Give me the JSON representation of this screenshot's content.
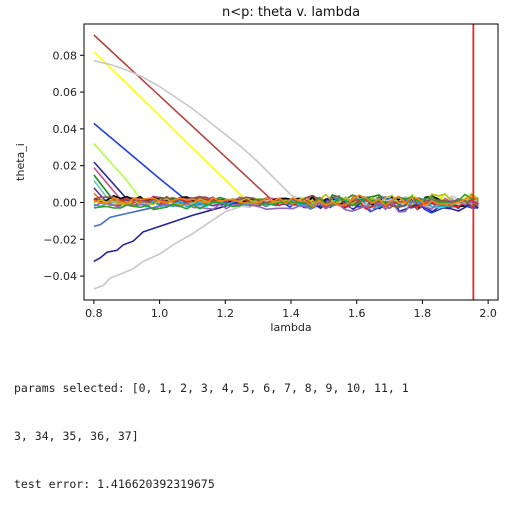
{
  "chart_data": {
    "type": "line",
    "title": "n<p: theta v. lambda",
    "xlabel": "lambda",
    "ylabel": "theta_i",
    "xlim": [
      0.77,
      2.03
    ],
    "ylim": [
      -0.053,
      0.097
    ],
    "xticks": [
      0.8,
      1.0,
      1.2,
      1.4,
      1.6,
      1.8,
      2.0
    ],
    "xtick_labels": [
      "0.8",
      "1.0",
      "1.2",
      "1.4",
      "1.6",
      "1.8",
      "2.0"
    ],
    "yticks": [
      0.08,
      0.06,
      0.04,
      0.02,
      0.0,
      -0.02,
      -0.04
    ],
    "ytick_labels": [
      "0.08",
      "0.06",
      "0.04",
      "0.02",
      "0.00",
      "−0.02",
      "−0.04"
    ],
    "grid": false,
    "legend": "none",
    "vline": {
      "x": 1.955,
      "color": "#e8282a"
    },
    "noise_x_start": 1.45,
    "noise_x_end": 1.97,
    "series": [
      {
        "color": "#b5443d",
        "points": [
          [
            0.8,
            0.091
          ],
          [
            1.35,
            0.0
          ],
          [
            1.97,
            -0.002
          ]
        ]
      },
      {
        "color": "#ffff00",
        "points": [
          [
            0.8,
            0.082
          ],
          [
            1.27,
            0.0
          ],
          [
            1.97,
            0.001
          ]
        ]
      },
      {
        "color": "#c8c8c8",
        "points": [
          [
            0.8,
            0.077
          ],
          [
            0.85,
            0.075
          ],
          [
            0.9,
            0.072
          ],
          [
            0.95,
            0.068
          ],
          [
            1.0,
            0.063
          ],
          [
            1.05,
            0.057
          ],
          [
            1.1,
            0.051
          ],
          [
            1.15,
            0.044
          ],
          [
            1.2,
            0.037
          ],
          [
            1.25,
            0.03
          ],
          [
            1.3,
            0.022
          ],
          [
            1.35,
            0.013
          ],
          [
            1.4,
            0.004
          ],
          [
            1.45,
            0.0
          ],
          [
            1.97,
            0.001
          ]
        ]
      },
      {
        "color": "#2040e0",
        "points": [
          [
            0.8,
            0.043
          ],
          [
            1.0,
            0.013
          ],
          [
            1.09,
            0.0
          ],
          [
            1.97,
            -0.003
          ]
        ]
      },
      {
        "color": "#b0ff40",
        "points": [
          [
            0.8,
            0.032
          ],
          [
            0.9,
            0.012
          ],
          [
            0.95,
            0.0
          ],
          [
            1.97,
            0.002
          ]
        ]
      },
      {
        "color": "#2a2a9c",
        "points": [
          [
            0.8,
            0.022
          ],
          [
            0.9,
            0.002
          ],
          [
            1.97,
            -0.001
          ]
        ]
      },
      {
        "color": "#c05090",
        "points": [
          [
            0.8,
            0.019
          ],
          [
            0.88,
            0.002
          ],
          [
            1.97,
            0.0
          ]
        ]
      },
      {
        "color": "#1a8a1a",
        "points": [
          [
            0.8,
            0.015
          ],
          [
            0.86,
            0.001
          ],
          [
            1.97,
            0.001
          ]
        ]
      },
      {
        "color": "#66c8c0",
        "points": [
          [
            0.8,
            0.012
          ],
          [
            0.85,
            0.0
          ],
          [
            1.97,
            0.0
          ]
        ]
      },
      {
        "color": "#7030a0",
        "points": [
          [
            0.8,
            0.008
          ],
          [
            0.84,
            0.0
          ],
          [
            1.97,
            -0.001
          ]
        ]
      },
      {
        "color": "#e07820",
        "points": [
          [
            0.8,
            0.005
          ],
          [
            0.83,
            0.0
          ],
          [
            1.97,
            0.001
          ]
        ]
      },
      {
        "color": "#000000",
        "points": [
          [
            0.8,
            0.002
          ],
          [
            1.97,
            0.0
          ]
        ]
      },
      {
        "color": "#4472c4",
        "points": [
          [
            0.8,
            -0.013
          ],
          [
            0.82,
            -0.012
          ],
          [
            0.85,
            -0.008
          ],
          [
            0.9,
            -0.006
          ],
          [
            0.95,
            -0.004
          ],
          [
            1.0,
            -0.002
          ],
          [
            1.05,
            0.0
          ],
          [
            1.97,
            -0.001
          ]
        ]
      },
      {
        "color": "#24249a",
        "points": [
          [
            0.8,
            -0.032
          ],
          [
            0.82,
            -0.03
          ],
          [
            0.84,
            -0.027
          ],
          [
            0.87,
            -0.026
          ],
          [
            0.89,
            -0.023
          ],
          [
            0.92,
            -0.021
          ],
          [
            0.95,
            -0.016
          ],
          [
            1.0,
            -0.013
          ],
          [
            1.1,
            -0.007
          ],
          [
            1.2,
            -0.002
          ],
          [
            1.25,
            0.0
          ],
          [
            1.97,
            -0.003
          ]
        ]
      },
      {
        "color": "#c8c8c8",
        "points": [
          [
            0.8,
            -0.047
          ],
          [
            0.83,
            -0.045
          ],
          [
            0.85,
            -0.041
          ],
          [
            0.88,
            -0.039
          ],
          [
            0.92,
            -0.036
          ],
          [
            0.95,
            -0.032
          ],
          [
            1.0,
            -0.028
          ],
          [
            1.05,
            -0.022
          ],
          [
            1.1,
            -0.017
          ],
          [
            1.15,
            -0.011
          ],
          [
            1.2,
            -0.005
          ],
          [
            1.25,
            -0.002
          ],
          [
            1.3,
            0.0
          ],
          [
            1.97,
            0.0
          ]
        ]
      },
      {
        "color": "#d62728",
        "points": [
          [
            0.8,
            0.001
          ],
          [
            1.97,
            -0.001
          ]
        ]
      },
      {
        "color": "#17becf",
        "points": [
          [
            0.8,
            -0.001
          ],
          [
            1.97,
            0.001
          ]
        ]
      },
      {
        "color": "#bcbd22",
        "points": [
          [
            0.8,
            0.0
          ],
          [
            1.97,
            0.002
          ]
        ]
      },
      {
        "color": "#9467bd",
        "points": [
          [
            0.8,
            -0.002
          ],
          [
            1.97,
            -0.002
          ]
        ]
      },
      {
        "color": "#8c564b",
        "points": [
          [
            0.8,
            0.002
          ],
          [
            1.97,
            0.0
          ]
        ]
      },
      {
        "color": "#2ca02c",
        "points": [
          [
            0.8,
            -0.003
          ],
          [
            1.97,
            0.002
          ]
        ]
      },
      {
        "color": "#ff7f0e",
        "points": [
          [
            0.8,
            0.001
          ],
          [
            1.97,
            0.001
          ]
        ]
      }
    ]
  },
  "output": {
    "params_line": "params selected: [0, 1, 2, 3, 4, 5, 6, 7, 8, 9, 10, 11, 1",
    "params_line_2": "3, 34, 35, 36, 37]",
    "test_error_line": "test error: 1.416620392319675"
  }
}
